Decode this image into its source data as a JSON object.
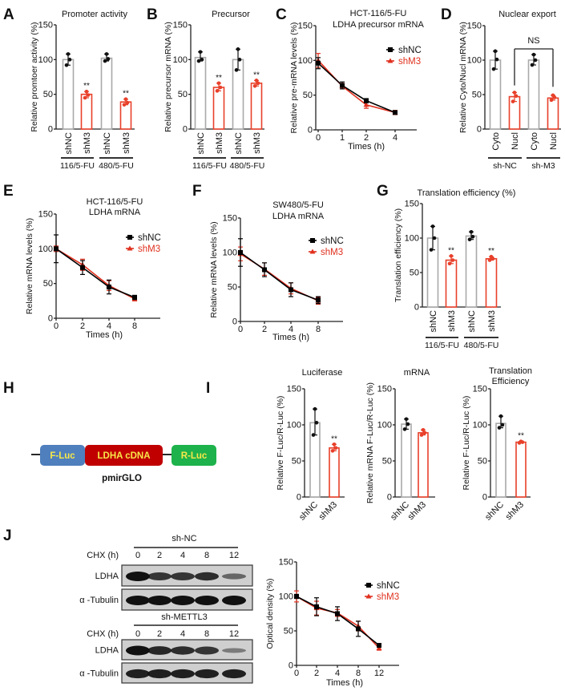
{
  "colors": {
    "control": "#a9a9a9",
    "treatment": "#e8402a",
    "axis": "#222222",
    "shNC": "#000000",
    "shM3": "#e0301e"
  },
  "panel_letters": [
    "A",
    "B",
    "C",
    "D",
    "E",
    "F",
    "G",
    "H",
    "I",
    "J"
  ],
  "chart_data": [
    {
      "id": "A",
      "type": "bar",
      "title": [
        "Promoter activity"
      ],
      "ylabel": "Relative promtoer activity  (%)",
      "ylim": [
        0,
        150
      ],
      "yticks": [
        0,
        50,
        100,
        150
      ],
      "bars": [
        {
          "label": "shNC",
          "value": 100,
          "replicates": [
            92,
            100,
            108
          ],
          "group": "control"
        },
        {
          "label": "shM3",
          "value": 50,
          "replicates": [
            45,
            49,
            54
          ],
          "group": "treatment",
          "sig": "**"
        },
        {
          "label": "shNC",
          "value": 102,
          "replicates": [
            98,
            101,
            108
          ],
          "group": "control"
        },
        {
          "label": "shM3",
          "value": 39,
          "replicates": [
            35,
            38,
            43
          ],
          "group": "treatment",
          "sig": "**"
        }
      ],
      "groups": [
        {
          "label": "116/5-FU",
          "bars": [
            0,
            1
          ]
        },
        {
          "label": "480/5-FU",
          "bars": [
            2,
            3
          ]
        }
      ]
    },
    {
      "id": "B",
      "type": "bar",
      "title": [
        "Precursor"
      ],
      "ylabel": "Relative precursor mRNA (%)",
      "ylim": [
        0,
        150
      ],
      "yticks": [
        0,
        50,
        100,
        150
      ],
      "bars": [
        {
          "label": "shNC",
          "value": 103,
          "replicates": [
            98,
            100,
            111
          ],
          "group": "control"
        },
        {
          "label": "shM3",
          "value": 60,
          "replicates": [
            55,
            60,
            66
          ],
          "group": "treatment",
          "sig": "**"
        },
        {
          "label": "shNC",
          "value": 100,
          "replicates": [
            85,
            100,
            115
          ],
          "group": "control"
        },
        {
          "label": "shM3",
          "value": 66,
          "replicates": [
            62,
            66,
            70
          ],
          "group": "treatment",
          "sig": "**"
        }
      ],
      "groups": [
        {
          "label": "116/5-FU",
          "bars": [
            0,
            1
          ]
        },
        {
          "label": "480/5-FU",
          "bars": [
            2,
            3
          ]
        }
      ]
    },
    {
      "id": "C",
      "type": "line",
      "title": [
        "HCT-116/5-FU",
        "LDHA precursor mRNA"
      ],
      "ylabel": "Relative pre-mRNA levels (%)",
      "xlabel": "Times (h)",
      "ylim": [
        0,
        150
      ],
      "yticks": [
        0,
        50,
        100,
        150
      ],
      "x": [
        0,
        1,
        2,
        4
      ],
      "series": [
        {
          "name": "shNC",
          "values": [
            96,
            64,
            42,
            25
          ],
          "err": [
            8,
            5,
            3,
            2
          ]
        },
        {
          "name": "shM3",
          "values": [
            100,
            63,
            36,
            25
          ],
          "err": [
            10,
            4,
            5,
            3
          ]
        }
      ],
      "legend": "top-right"
    },
    {
      "id": "D",
      "type": "bar",
      "title": [
        "Nuclear export"
      ],
      "ylabel": "Relative Cyto/Nucl mRNA (%)",
      "ylim": [
        0,
        150
      ],
      "yticks": [
        0,
        50,
        100,
        150
      ],
      "bars": [
        {
          "label": "Cyto",
          "value": 100,
          "replicates": [
            87,
            101,
            113
          ],
          "group": "control"
        },
        {
          "label": "Nucl",
          "value": 47,
          "replicates": [
            40,
            48,
            53
          ],
          "group": "treatment"
        },
        {
          "label": "Cyto",
          "value": 100,
          "replicates": [
            93,
            100,
            108
          ],
          "group": "control"
        },
        {
          "label": "Nucl",
          "value": 45,
          "replicates": [
            42,
            46,
            49
          ],
          "group": "treatment"
        }
      ],
      "groups": [
        {
          "label": "sh-NC",
          "bars": [
            0,
            1
          ]
        },
        {
          "label": "sh-M3",
          "bars": [
            2,
            3
          ]
        }
      ],
      "comparison": {
        "label": "NS",
        "bars": [
          1,
          3
        ]
      }
    },
    {
      "id": "E",
      "type": "line",
      "title": [
        "HCT-116/5-FU",
        "LDHA mRNA"
      ],
      "ylabel": "Relative mRNA levels (%)",
      "xlabel": "Times (h)",
      "ylim": [
        0,
        150
      ],
      "yticks": [
        0,
        50,
        100,
        150
      ],
      "x": [
        0,
        2,
        4,
        8
      ],
      "series": [
        {
          "name": "shNC",
          "values": [
            100,
            73,
            45,
            30
          ],
          "err": [
            20,
            10,
            10,
            3
          ]
        },
        {
          "name": "shM3",
          "values": [
            100,
            77,
            47,
            28
          ],
          "err": [
            4,
            8,
            7,
            3
          ]
        }
      ],
      "legend": "top-right"
    },
    {
      "id": "F",
      "type": "line",
      "title": [
        "SW480/5-FU",
        "LDHA mRNA"
      ],
      "ylabel": "Relative mRNA levels (%)",
      "xlabel": "Times (h)",
      "ylim": [
        0,
        150
      ],
      "yticks": [
        0,
        50,
        100,
        150
      ],
      "x": [
        0,
        2,
        4,
        8
      ],
      "series": [
        {
          "name": "shNC",
          "values": [
            100,
            75,
            46,
            31
          ],
          "err": [
            20,
            10,
            10,
            5
          ]
        },
        {
          "name": "shM3",
          "values": [
            98,
            76,
            48,
            30
          ],
          "err": [
            10,
            9,
            8,
            5
          ]
        }
      ],
      "legend": "top-right"
    },
    {
      "id": "G",
      "type": "bar",
      "title": [
        "Translation efficiency (%)"
      ],
      "ylabel": "Translation efficiency (%)",
      "ylim": [
        0,
        150
      ],
      "yticks": [
        0,
        50,
        100,
        150
      ],
      "bars": [
        {
          "label": "shNC",
          "value": 100,
          "replicates": [
            83,
            100,
            117
          ],
          "group": "control"
        },
        {
          "label": "shM3",
          "value": 68,
          "replicates": [
            63,
            68,
            74
          ],
          "group": "treatment",
          "sig": "**"
        },
        {
          "label": "shNC",
          "value": 103,
          "replicates": [
            98,
            102,
            109
          ],
          "group": "control"
        },
        {
          "label": "shM3",
          "value": 70,
          "replicates": [
            68,
            70,
            73
          ],
          "group": "treatment",
          "sig": "**"
        }
      ],
      "groups": [
        {
          "label": "116/5-FU",
          "bars": [
            0,
            1
          ]
        },
        {
          "label": "480/5-FU",
          "bars": [
            2,
            3
          ]
        }
      ]
    },
    {
      "id": "I1",
      "type": "bar",
      "title": [
        "Luciferase"
      ],
      "ylabel": "Relative F-Luc/R-Luc (%)",
      "ylim": [
        0,
        150
      ],
      "yticks": [
        0,
        50,
        100,
        150
      ],
      "bars": [
        {
          "label": "shNC",
          "value": 103,
          "replicates": [
            86,
            103,
            122
          ],
          "group": "control"
        },
        {
          "label": "shM3",
          "value": 68,
          "replicates": [
            64,
            68,
            73
          ],
          "group": "treatment",
          "sig": "**"
        }
      ]
    },
    {
      "id": "I2",
      "type": "bar",
      "title": [
        "mRNA"
      ],
      "ylabel": "Relative mRNA F-Luc/R-Luc (%)",
      "ylim": [
        0,
        150
      ],
      "yticks": [
        0,
        50,
        100,
        150
      ],
      "bars": [
        {
          "label": "shNC",
          "value": 101,
          "replicates": [
            94,
            101,
            108
          ],
          "group": "control"
        },
        {
          "label": "shM3",
          "value": 89,
          "replicates": [
            86,
            89,
            93
          ],
          "group": "treatment"
        }
      ]
    },
    {
      "id": "I3",
      "type": "bar",
      "title": [
        "Translation",
        "Efficiency"
      ],
      "ylabel": "Relative F-Luc/R-Luc (%)",
      "ylim": [
        0,
        150
      ],
      "yticks": [
        0,
        50,
        100,
        150
      ],
      "bars": [
        {
          "label": "shNC",
          "value": 102,
          "replicates": [
            96,
            100,
            112
          ],
          "group": "control"
        },
        {
          "label": "shM3",
          "value": 76,
          "replicates": [
            75,
            76,
            77
          ],
          "group": "treatment",
          "sig": "**"
        }
      ]
    },
    {
      "id": "J",
      "type": "line",
      "title": [],
      "ylabel": "Optical density (%)",
      "xlabel": "Times (h)",
      "ylim": [
        0,
        150
      ],
      "yticks": [
        0,
        50,
        100,
        150
      ],
      "x": [
        0,
        2,
        4,
        8,
        12
      ],
      "series": [
        {
          "name": "shNC",
          "values": [
            100,
            85,
            75,
            53,
            29
          ],
          "err": [
            3,
            13,
            10,
            11,
            2
          ]
        },
        {
          "name": "shM3",
          "values": [
            100,
            83,
            76,
            57,
            25
          ],
          "err": [
            8,
            10,
            5,
            7,
            3
          ]
        }
      ],
      "legend": "top-right"
    }
  ],
  "construct": {
    "segments": [
      {
        "label": "F-Luc",
        "color": "#4f7fbd"
      },
      {
        "label": "LDHA cDNA",
        "color": "#c00000"
      },
      {
        "label": "R-Luc",
        "color": "#1db24b"
      }
    ],
    "label_color": "#f7e84a",
    "name": "pmirGLO"
  },
  "western_blot": {
    "groups": [
      {
        "title": "sh-NC",
        "chx_label": "CHX (h)",
        "lanes": [
          "0",
          "2",
          "4",
          "8",
          "12"
        ],
        "rows": [
          {
            "label": "LDHA",
            "intensity": [
              1.0,
              0.75,
              0.75,
              0.8,
              0.4
            ]
          },
          {
            "label": "α -Tubulin",
            "intensity": [
              1,
              1,
              1,
              1,
              1
            ]
          }
        ]
      },
      {
        "title": "sh-METTL3",
        "chx_label": "CHX (h)",
        "lanes": [
          "0",
          "2",
          "4",
          "8",
          "12"
        ],
        "rows": [
          {
            "label": "LDHA",
            "intensity": [
              1.0,
              0.85,
              0.8,
              0.75,
              0.25
            ]
          },
          {
            "label": "α -Tubulin",
            "intensity": [
              0.9,
              0.9,
              0.9,
              0.9,
              0.9
            ]
          }
        ]
      }
    ]
  }
}
